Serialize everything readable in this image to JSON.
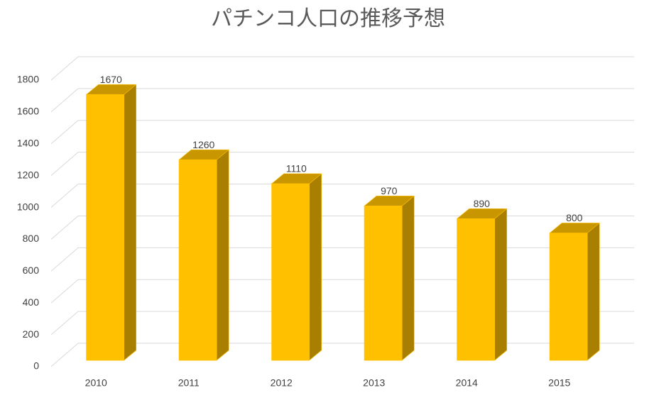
{
  "chart_data": {
    "type": "bar",
    "title": "パチンコ人口の推移予想",
    "categories": [
      "2010",
      "2011",
      "2012",
      "2013",
      "2014",
      "2015"
    ],
    "values": [
      1670,
      1260,
      1110,
      970,
      890,
      800
    ],
    "color": "#ffc000",
    "ylim": [
      0,
      1800
    ],
    "yticks": [
      0,
      200,
      400,
      600,
      800,
      1000,
      1200,
      1400,
      1600,
      1800
    ],
    "grid": true
  }
}
